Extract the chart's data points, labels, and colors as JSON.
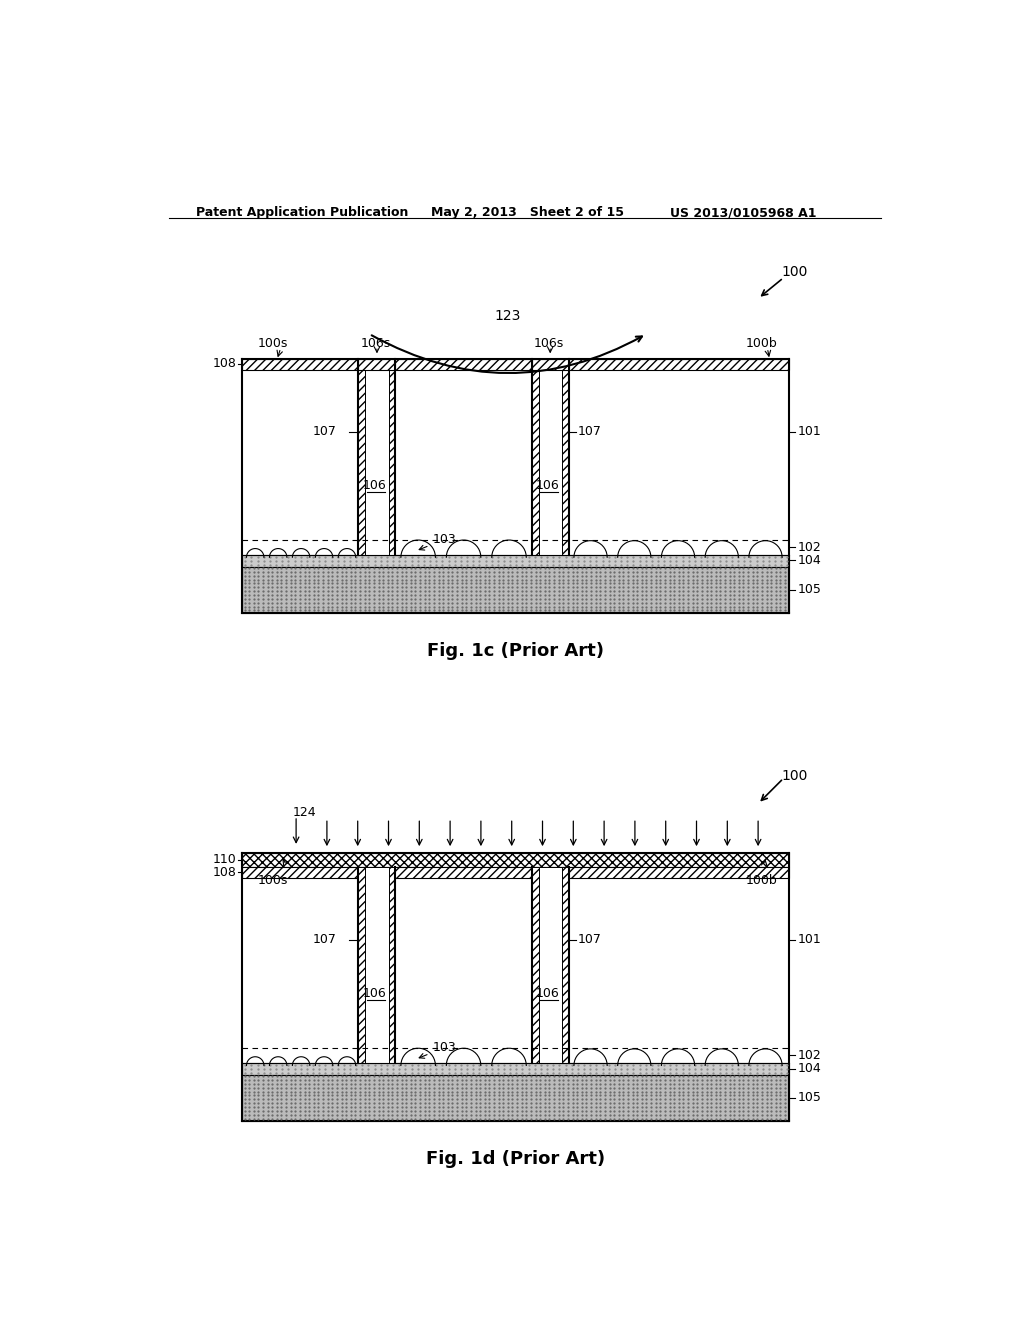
{
  "header_left": "Patent Application Publication",
  "header_mid": "May 2, 2013   Sheet 2 of 15",
  "header_right": "US 2013/0105968 A1",
  "fig1c_label": "Fig. 1c (Prior Art)",
  "fig1d_label": "Fig. 1d (Prior Art)",
  "background_color": "#ffffff",
  "line_color": "#000000"
}
